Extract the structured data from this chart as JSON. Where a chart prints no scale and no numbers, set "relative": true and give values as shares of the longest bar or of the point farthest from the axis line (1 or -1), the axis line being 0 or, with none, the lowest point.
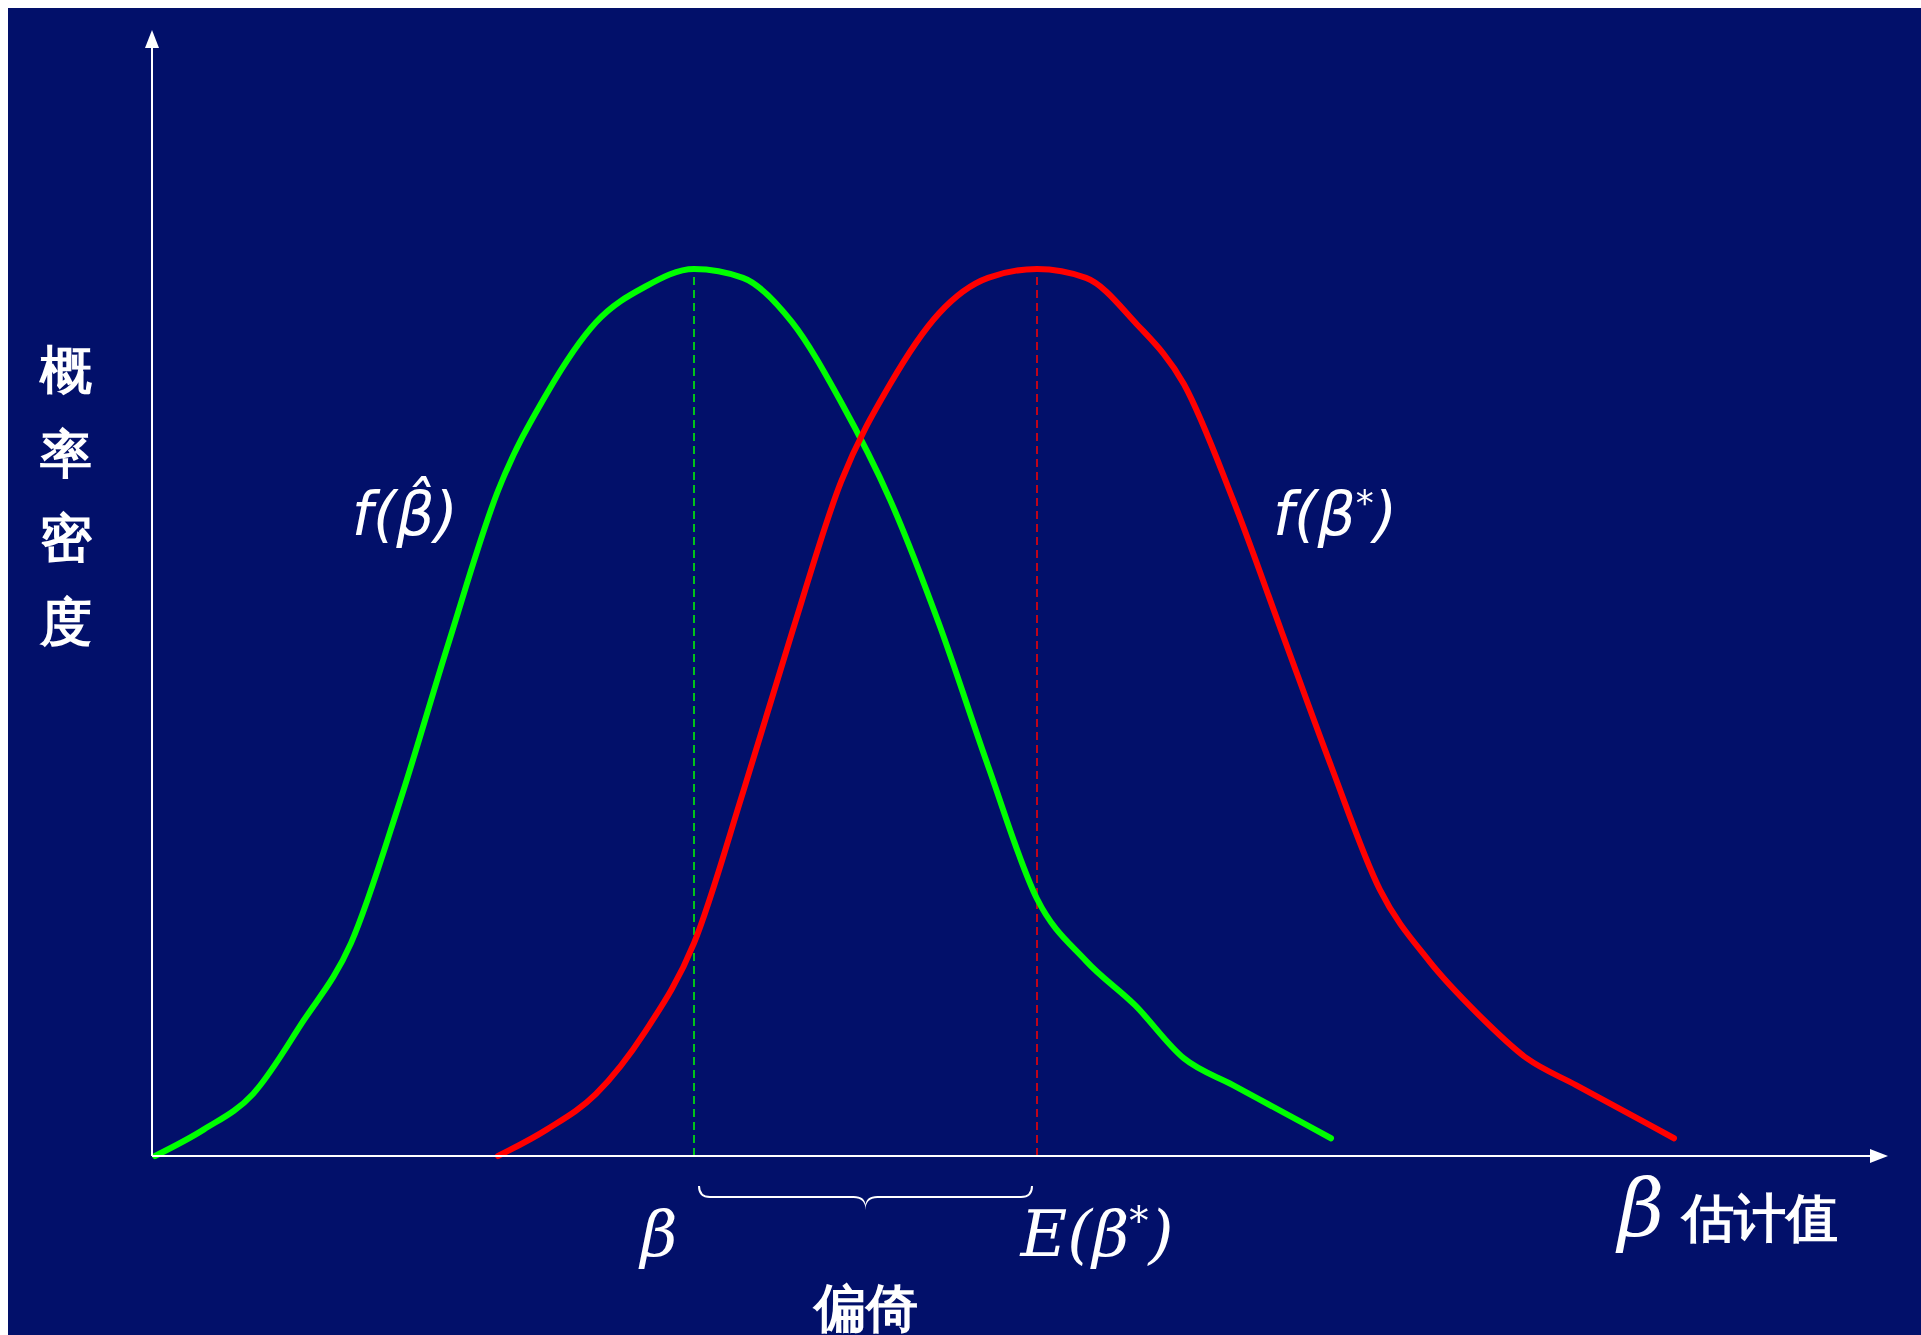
{
  "chart_data": {
    "type": "line",
    "relative": true,
    "ylabel": "概率密度",
    "xlabel": "β 估计值",
    "categories": [
      null,
      null,
      null,
      null,
      null,
      null,
      null,
      null,
      null,
      null,
      null,
      null,
      null,
      null,
      null,
      null,
      null,
      null,
      null,
      null,
      null,
      null,
      null,
      null,
      null,
      null,
      null,
      null,
      null,
      null,
      null,
      null,
      null,
      null,
      null,
      null
    ],
    "series": [
      {
        "name": "f(β̂)",
        "color": "#00ff00",
        "values": [
          0,
          0.03,
          0.07,
          0.15,
          0.24,
          0.4,
          0.58,
          0.75,
          0.86,
          0.94,
          0.98,
          1,
          0.99,
          0.94,
          0.85,
          0.74,
          0.6,
          0.44,
          0.29,
          0.22,
          0.17,
          0.11,
          0.08,
          0.05,
          0.02,
          null,
          null,
          null,
          null,
          null,
          null,
          null,
          null,
          null,
          null,
          null
        ]
      },
      {
        "name": "f(β$^{*}$)",
        "color": "#ff0000",
        "values": [
          null,
          null,
          null,
          null,
          null,
          null,
          null,
          0,
          0.03,
          0.07,
          0.14,
          0.24,
          0.41,
          0.59,
          0.76,
          0.87,
          0.95,
          0.99,
          1,
          0.99,
          0.94,
          0.87,
          0.74,
          0.59,
          0.44,
          0.3,
          0.22,
          0.16,
          0.11,
          0.08,
          0.05,
          0.02,
          null,
          null,
          null,
          null
        ]
      }
    ],
    "annotations": [
      "β",
      "E(β$^{*}$)",
      "偏倚"
    ],
    "line_style": "solid",
    "marker": "none",
    "grid": false
  }
}
